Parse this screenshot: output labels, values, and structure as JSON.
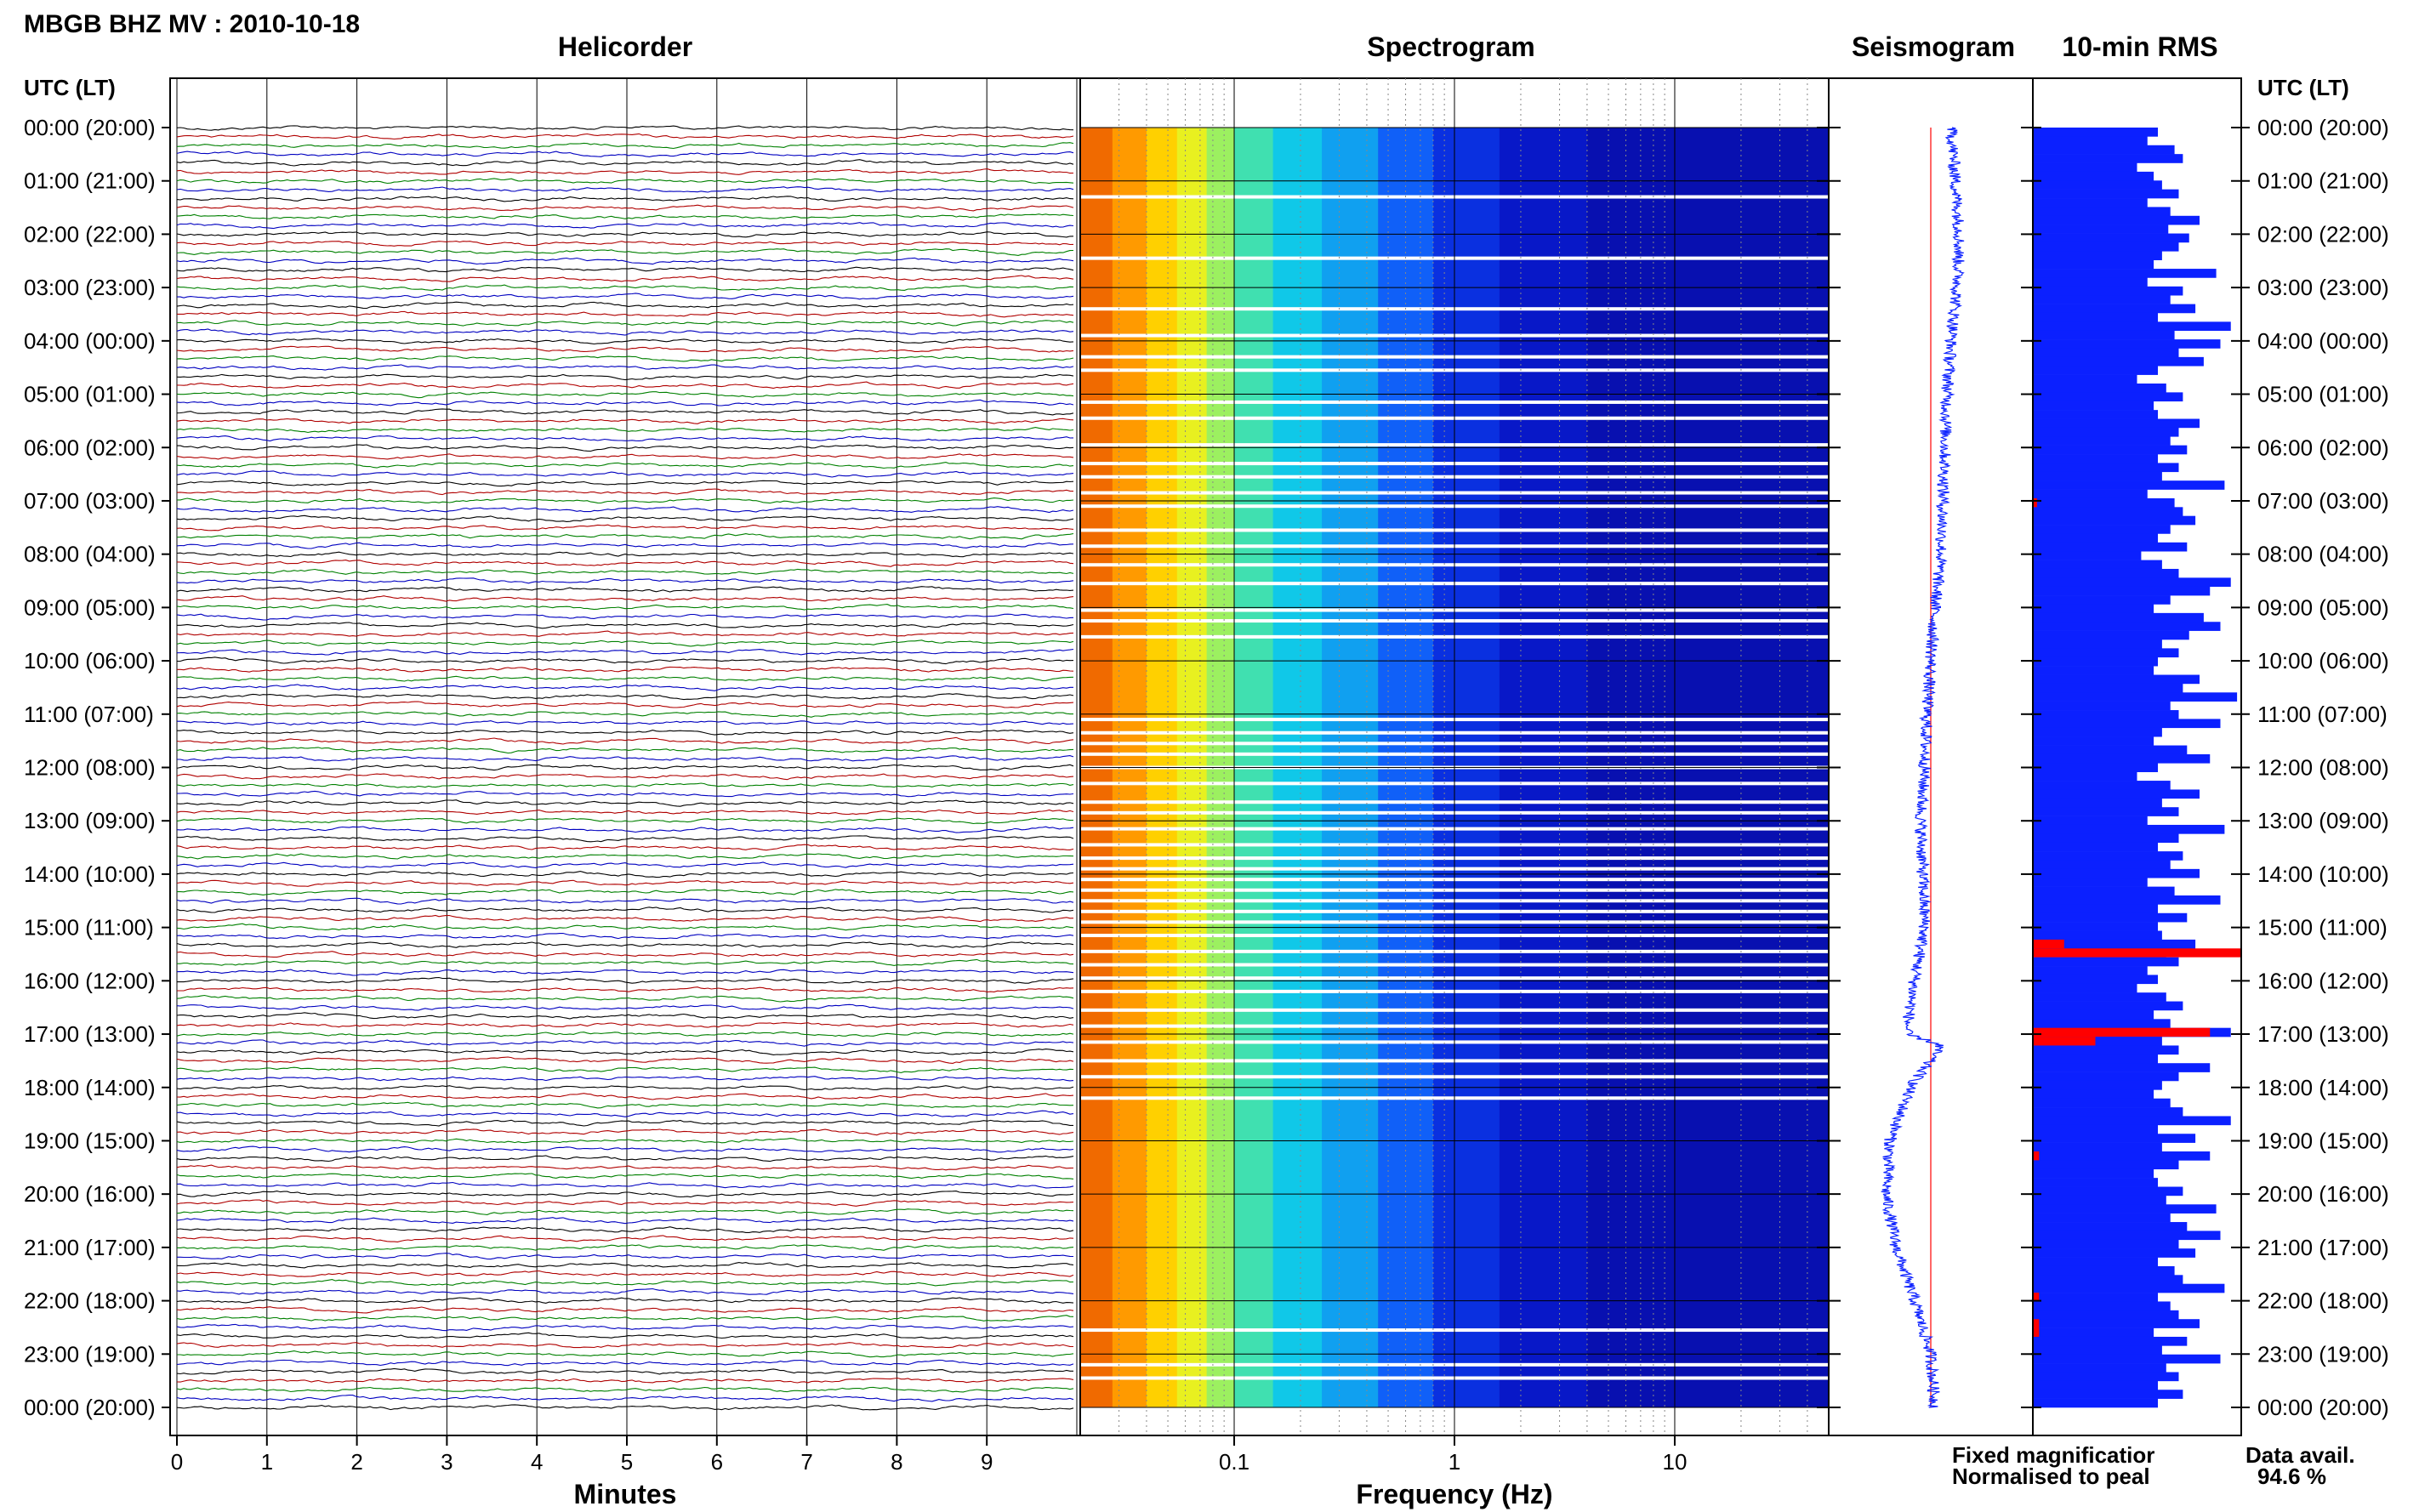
{
  "header": {
    "station_title": "MBGB BHZ MV : 2010-10-18",
    "helicorder_title": "Helicorder",
    "spectrogram_title": "Spectrogram",
    "seismogram_title": "Seismogram",
    "rms_title": "10-min RMS",
    "time_axis_label_left": "UTC (LT)",
    "time_axis_label_right": "UTC (LT)"
  },
  "footer": {
    "minutes_label": "Minutes",
    "frequency_label": "Frequency (Hz)",
    "legend_fixed": "Fixed magnificatior",
    "legend_normalised": "Normalised to peal",
    "data_avail_label": "Data avail.",
    "data_avail_value": "94.6 %"
  },
  "colors": {
    "fixed": "#0b20ff",
    "normalised": "#ff0000",
    "trace_palette": [
      "#000000",
      "#b00000",
      "#008000",
      "#0000c0"
    ]
  },
  "chart_data": [
    {
      "type": "line",
      "name_key": "helicorder",
      "x_label": "Minutes",
      "x_range": [
        0,
        10
      ],
      "x_ticks": [
        "0",
        "1",
        "2",
        "3",
        "4",
        "5",
        "6",
        "7",
        "8",
        "9"
      ],
      "rows": 145,
      "row_minutes": 10,
      "y_tick_labels": [
        "00:00 (20:00)",
        "01:00 (21:00)",
        "02:00 (22:00)",
        "03:00 (23:00)",
        "04:00 (00:00)",
        "05:00 (01:00)",
        "06:00 (02:00)",
        "07:00 (03:00)",
        "08:00 (04:00)",
        "09:00 (05:00)",
        "10:00 (06:00)",
        "11:00 (07:00)",
        "12:00 (08:00)",
        "13:00 (09:00)",
        "14:00 (10:00)",
        "15:00 (11:00)",
        "16:00 (12:00)",
        "17:00 (13:00)",
        "18:00 (14:00)",
        "19:00 (15:00)",
        "20:00 (16:00)",
        "21:00 (17:00)",
        "22:00 (18:00)",
        "23:00 (19:00)",
        "00:00 (20:00)"
      ]
    },
    {
      "type": "heatmap",
      "name_key": "spectrogram",
      "x_label": "Frequency (Hz)",
      "x_scale": "log",
      "x_range": [
        0.02,
        50
      ],
      "x_ticks": [
        "0.1",
        "1",
        "10"
      ],
      "gap_hours": [
        1.3,
        2.45,
        3.4,
        3.9,
        4.3,
        4.55,
        5.15,
        5.45,
        5.95,
        6.3,
        6.55,
        6.85,
        7.1,
        7.55,
        7.85,
        8.2,
        8.55,
        9.05,
        9.25,
        9.55,
        11.1,
        11.35,
        11.55,
        11.75,
        12.0,
        12.3,
        12.65,
        12.85,
        13.15,
        13.45,
        13.7,
        13.9,
        14.1,
        14.3,
        14.5,
        14.7,
        14.9,
        15.15,
        15.45,
        15.7,
        15.95,
        16.2,
        16.55,
        16.85,
        17.15,
        17.5,
        17.8,
        18.2,
        22.55,
        23.2,
        23.45
      ]
    },
    {
      "type": "line",
      "name_key": "seismogram",
      "series": [
        {
          "name": "Fixed magnificatior",
          "offset_hours": [
            0,
            1,
            2,
            3,
            4,
            5,
            6,
            7,
            8,
            9,
            10,
            11,
            12,
            13,
            14,
            15,
            16,
            17,
            17.2,
            18,
            19,
            20,
            21,
            22,
            23,
            24
          ],
          "values": [
            0.6,
            0.62,
            0.64,
            0.63,
            0.6,
            0.58,
            0.57,
            0.56,
            0.55,
            0.52,
            0.5,
            0.48,
            0.47,
            0.45,
            0.46,
            0.47,
            0.42,
            0.38,
            0.55,
            0.4,
            0.3,
            0.28,
            0.33,
            0.42,
            0.5,
            0.52
          ]
        }
      ]
    },
    {
      "type": "bar",
      "name_key": "rms",
      "bins": 145,
      "bin_minutes": 10,
      "values_fraction": [
        0.6,
        0.55,
        0.68,
        0.72,
        0.5,
        0.58,
        0.62,
        0.7,
        0.55,
        0.66,
        0.8,
        0.65,
        0.75,
        0.7,
        0.62,
        0.58,
        0.88,
        0.55,
        0.72,
        0.66,
        0.78,
        0.6,
        0.95,
        0.68,
        0.9,
        0.7,
        0.82,
        0.6,
        0.5,
        0.64,
        0.72,
        0.58,
        0.6,
        0.8,
        0.7,
        0.66,
        0.74,
        0.6,
        0.7,
        0.62,
        0.92,
        0.55,
        0.68,
        0.72,
        0.78,
        0.66,
        0.6,
        0.74,
        0.52,
        0.62,
        0.7,
        0.95,
        0.85,
        0.66,
        0.58,
        0.82,
        0.9,
        0.75,
        0.62,
        0.7,
        0.6,
        0.58,
        0.8,
        0.72,
        0.98,
        0.66,
        0.7,
        0.9,
        0.62,
        0.58,
        0.74,
        0.85,
        0.6,
        0.5,
        0.66,
        0.8,
        0.62,
        0.7,
        0.55,
        0.92,
        0.7,
        0.6,
        0.72,
        0.66,
        0.8,
        0.55,
        0.68,
        0.9,
        0.6,
        0.74,
        0.6,
        0.62,
        0.78,
        0.64,
        0.7,
        0.55,
        0.6,
        0.5,
        0.64,
        0.72,
        0.58,
        0.66,
        0.95,
        0.62,
        0.7,
        0.6,
        0.85,
        0.7,
        0.62,
        0.58,
        0.66,
        0.72,
        0.95,
        0.6,
        0.78,
        0.62,
        0.85,
        0.7,
        0.58,
        0.6,
        0.72,
        0.64,
        0.88,
        0.66,
        0.74,
        0.9,
        0.7,
        0.78,
        0.6,
        0.68,
        0.72,
        0.92,
        0.6,
        0.66,
        0.7,
        0.8,
        0.58,
        0.74,
        0.62,
        0.9,
        0.64,
        0.7,
        0.6,
        0.72,
        0.6
      ],
      "normalised_bins": [
        42,
        92,
        93,
        102,
        103,
        116,
        132,
        135,
        136
      ],
      "normalised_fraction": [
        0.02,
        0.15,
        1.0,
        0.85,
        0.3,
        0.03,
        0.03,
        0.03,
        0.03
      ]
    }
  ]
}
